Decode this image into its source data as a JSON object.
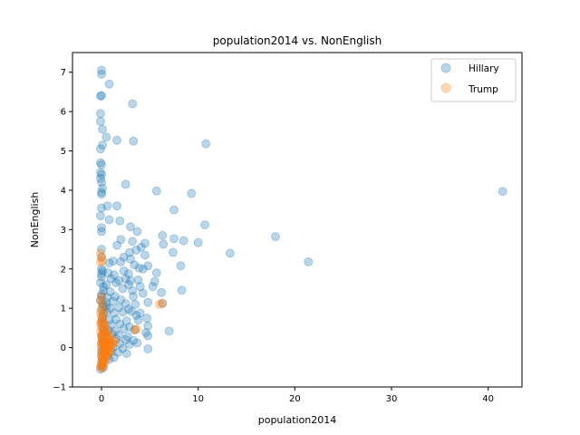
{
  "chart_data": {
    "type": "scatter",
    "title": "population2014 vs. NonEnglish",
    "xlabel": "population2014",
    "ylabel": "NonEnglish",
    "xlim": [
      -3,
      43.5
    ],
    "ylim": [
      -1,
      7.5
    ],
    "xticks": [
      0,
      10,
      20,
      30,
      40
    ],
    "yticks": [
      -1,
      0,
      1,
      2,
      3,
      4,
      5,
      6,
      7
    ],
    "grid": false,
    "legend_position": "top-right",
    "series": [
      {
        "name": "Hillary",
        "color": "#1f77b4",
        "alpha": 0.3,
        "points": [
          [
            0.0,
            7.05
          ],
          [
            0.0,
            6.95
          ],
          [
            0.8,
            6.7
          ],
          [
            -0.1,
            6.4
          ],
          [
            0.0,
            6.4
          ],
          [
            3.2,
            6.2
          ],
          [
            -0.1,
            5.95
          ],
          [
            -0.1,
            5.75
          ],
          [
            0.1,
            5.55
          ],
          [
            0.5,
            5.35
          ],
          [
            1.6,
            5.27
          ],
          [
            3.3,
            5.25
          ],
          [
            10.8,
            5.18
          ],
          [
            0.1,
            5.15
          ],
          [
            -0.1,
            5.05
          ],
          [
            -0.1,
            4.7
          ],
          [
            0.0,
            4.65
          ],
          [
            -0.1,
            4.45
          ],
          [
            0.0,
            4.4
          ],
          [
            -0.1,
            4.3
          ],
          [
            0.0,
            4.2
          ],
          [
            2.5,
            4.15
          ],
          [
            0.1,
            4.05
          ],
          [
            0.0,
            3.95
          ],
          [
            0.0,
            3.9
          ],
          [
            5.7,
            3.98
          ],
          [
            9.3,
            3.92
          ],
          [
            41.5,
            3.97
          ],
          [
            0.6,
            3.6
          ],
          [
            1.6,
            3.6
          ],
          [
            0.0,
            3.55
          ],
          [
            7.5,
            3.5
          ],
          [
            -0.1,
            3.35
          ],
          [
            0.8,
            3.25
          ],
          [
            1.9,
            3.22
          ],
          [
            10.7,
            3.12
          ],
          [
            0.0,
            3.05
          ],
          [
            0.0,
            2.95
          ],
          [
            3.0,
            3.07
          ],
          [
            3.7,
            2.95
          ],
          [
            6.3,
            2.85
          ],
          [
            7.5,
            2.77
          ],
          [
            8.5,
            2.72
          ],
          [
            10.0,
            2.67
          ],
          [
            18.0,
            2.82
          ],
          [
            0.0,
            2.5
          ],
          [
            2.0,
            2.75
          ],
          [
            3.2,
            2.7
          ],
          [
            4.5,
            2.65
          ],
          [
            6.4,
            2.63
          ],
          [
            1.6,
            2.6
          ],
          [
            2.9,
            2.42
          ],
          [
            3.6,
            2.48
          ],
          [
            4.1,
            2.55
          ],
          [
            7.4,
            2.42
          ],
          [
            13.3,
            2.4
          ],
          [
            0.0,
            2.3
          ],
          [
            2.3,
            2.3
          ],
          [
            3.0,
            2.25
          ],
          [
            4.5,
            2.35
          ],
          [
            1.2,
            2.2
          ],
          [
            2.0,
            2.18
          ],
          [
            21.4,
            2.18
          ],
          [
            0.0,
            2.0
          ],
          [
            0.8,
            2.15
          ],
          [
            3.4,
            2.1
          ],
          [
            3.9,
            2.02
          ],
          [
            4.8,
            2.08
          ],
          [
            4.3,
            2.0
          ],
          [
            0.1,
            1.95
          ],
          [
            0.0,
            1.88
          ],
          [
            0.7,
            1.9
          ],
          [
            1.3,
            1.85
          ],
          [
            2.3,
            1.95
          ],
          [
            2.8,
            1.88
          ],
          [
            5.7,
            1.9
          ],
          [
            8.2,
            2.08
          ],
          [
            0.0,
            1.8
          ],
          [
            1.0,
            1.75
          ],
          [
            1.8,
            1.7
          ],
          [
            2.5,
            1.75
          ],
          [
            3.0,
            1.7
          ],
          [
            3.8,
            1.72
          ],
          [
            5.5,
            1.68
          ],
          [
            -0.1,
            1.65
          ],
          [
            0.5,
            1.6
          ],
          [
            1.5,
            1.65
          ],
          [
            2.8,
            1.6
          ],
          [
            4.0,
            1.55
          ],
          [
            5.3,
            1.55
          ],
          [
            0.2,
            1.45
          ],
          [
            0.9,
            1.42
          ],
          [
            2.2,
            1.5
          ],
          [
            3.2,
            1.45
          ],
          [
            4.3,
            1.38
          ],
          [
            6.2,
            1.4
          ],
          [
            8.3,
            1.46
          ],
          [
            0.0,
            1.3
          ],
          [
            0.6,
            1.28
          ],
          [
            1.4,
            1.3
          ],
          [
            2.0,
            1.22
          ],
          [
            3.3,
            1.3
          ],
          [
            -0.1,
            1.2
          ],
          [
            0.5,
            1.15
          ],
          [
            1.2,
            1.18
          ],
          [
            2.5,
            1.12
          ],
          [
            3.5,
            1.1
          ],
          [
            4.8,
            1.15
          ],
          [
            6.3,
            1.12
          ],
          [
            0.2,
            1.05
          ],
          [
            0.9,
            1.0
          ],
          [
            1.8,
            1.02
          ],
          [
            2.8,
            0.98
          ],
          [
            3.1,
            0.92
          ],
          [
            4.0,
            0.88
          ],
          [
            0.0,
            0.95
          ],
          [
            0.5,
            0.9
          ],
          [
            1.3,
            0.88
          ],
          [
            2.2,
            0.9
          ],
          [
            3.6,
            0.82
          ],
          [
            4.7,
            0.75
          ],
          [
            0.1,
            0.75
          ],
          [
            0.8,
            0.7
          ],
          [
            1.5,
            0.72
          ],
          [
            2.6,
            0.68
          ],
          [
            3.8,
            0.7
          ],
          [
            0.2,
            0.62
          ],
          [
            1.0,
            0.58
          ],
          [
            1.9,
            0.6
          ],
          [
            2.9,
            0.52
          ],
          [
            4.8,
            0.55
          ],
          [
            0.1,
            0.5
          ],
          [
            0.7,
            0.45
          ],
          [
            1.4,
            0.42
          ],
          [
            2.3,
            0.48
          ],
          [
            3.4,
            0.45
          ],
          [
            4.6,
            0.38
          ],
          [
            7.0,
            0.42
          ],
          [
            0.3,
            0.38
          ],
          [
            1.1,
            0.35
          ],
          [
            1.8,
            0.32
          ],
          [
            2.7,
            0.28
          ],
          [
            4.8,
            0.3
          ],
          [
            0.0,
            0.3
          ],
          [
            0.6,
            0.25
          ],
          [
            1.5,
            0.22
          ],
          [
            2.5,
            0.2
          ],
          [
            3.3,
            0.18
          ],
          [
            0.2,
            0.15
          ],
          [
            0.9,
            0.12
          ],
          [
            1.9,
            0.1
          ],
          [
            2.9,
            0.08
          ],
          [
            3.7,
            0.12
          ],
          [
            0.0,
            0.05
          ],
          [
            0.5,
            0.02
          ],
          [
            1.2,
            0.0
          ],
          [
            2.2,
            -0.02
          ],
          [
            4.8,
            -0.03
          ],
          [
            0.3,
            -0.08
          ],
          [
            1.0,
            -0.1
          ],
          [
            1.7,
            -0.12
          ],
          [
            2.6,
            -0.15
          ],
          [
            0.0,
            -0.2
          ],
          [
            0.6,
            -0.22
          ],
          [
            1.3,
            -0.25
          ],
          [
            0.8,
            -0.3
          ],
          [
            0.1,
            -0.35
          ],
          [
            0.0,
            -0.45
          ],
          [
            -0.1,
            -0.55
          ],
          [
            0.2,
            -0.5
          ],
          [
            0.0,
            -0.1
          ],
          [
            0.4,
            0.1
          ],
          [
            0.1,
            0.2
          ],
          [
            0.3,
            0.45
          ],
          [
            0.0,
            0.65
          ],
          [
            0.2,
            0.85
          ],
          [
            0.5,
            1.05
          ],
          [
            0.1,
            1.12
          ],
          [
            0.0,
            1.35
          ],
          [
            0.2,
            1.55
          ]
        ]
      },
      {
        "name": "Trump",
        "color": "#ff7f0e",
        "alpha": 0.3,
        "points": [
          [
            -0.1,
            2.4
          ],
          [
            0.0,
            2.3
          ],
          [
            0.1,
            2.2
          ],
          [
            -0.1,
            2.18
          ],
          [
            0.0,
            1.3
          ],
          [
            -0.1,
            1.2
          ],
          [
            0.1,
            1.1
          ],
          [
            0.0,
            1.0
          ],
          [
            6.0,
            1.1
          ],
          [
            6.3,
            1.13
          ],
          [
            -0.1,
            0.88
          ],
          [
            0.0,
            0.8
          ],
          [
            0.1,
            0.75
          ],
          [
            0.0,
            0.68
          ],
          [
            -0.1,
            0.6
          ],
          [
            0.2,
            0.62
          ],
          [
            0.0,
            0.55
          ],
          [
            0.3,
            0.5
          ],
          [
            0.1,
            0.45
          ],
          [
            3.5,
            0.45
          ],
          [
            3.6,
            0.47
          ],
          [
            -0.1,
            0.4
          ],
          [
            0.2,
            0.38
          ],
          [
            0.4,
            0.35
          ],
          [
            0.0,
            0.3
          ],
          [
            0.5,
            0.28
          ],
          [
            0.8,
            0.25
          ],
          [
            0.1,
            0.22
          ],
          [
            0.3,
            0.2
          ],
          [
            0.6,
            0.18
          ],
          [
            0.0,
            0.15
          ],
          [
            0.9,
            0.15
          ],
          [
            0.2,
            0.1
          ],
          [
            0.4,
            0.08
          ],
          [
            0.7,
            0.05
          ],
          [
            1.0,
            0.05
          ],
          [
            0.0,
            0.02
          ],
          [
            0.3,
            0.0
          ],
          [
            0.5,
            -0.02
          ],
          [
            0.8,
            -0.05
          ],
          [
            0.1,
            -0.08
          ],
          [
            0.4,
            -0.1
          ],
          [
            0.0,
            -0.12
          ],
          [
            0.6,
            -0.15
          ],
          [
            0.2,
            -0.18
          ],
          [
            0.0,
            -0.22
          ],
          [
            0.3,
            -0.25
          ],
          [
            0.1,
            -0.3
          ],
          [
            0.0,
            -0.35
          ],
          [
            0.2,
            -0.38
          ],
          [
            0.0,
            -0.42
          ],
          [
            0.1,
            -0.45
          ],
          [
            -0.1,
            -0.48
          ],
          [
            0.0,
            -0.5
          ],
          [
            0.1,
            -0.52
          ],
          [
            0.3,
            -0.4
          ],
          [
            0.5,
            -0.3
          ],
          [
            0.7,
            -0.2
          ],
          [
            0.9,
            -0.1
          ],
          [
            1.2,
            0.1
          ],
          [
            0.2,
            0.3
          ],
          [
            0.4,
            0.5
          ],
          [
            0.6,
            0.4
          ],
          [
            0.3,
            0.6
          ],
          [
            0.1,
            0.7
          ],
          [
            0.2,
            0.9
          ],
          [
            0.0,
            0.12
          ],
          [
            0.15,
            -0.05
          ],
          [
            0.25,
            0.05
          ],
          [
            0.35,
            -0.15
          ],
          [
            0.05,
            0.25
          ],
          [
            0.45,
            0.15
          ],
          [
            0.55,
            0.0
          ],
          [
            0.65,
            0.1
          ],
          [
            0.75,
            -0.1
          ],
          [
            1.1,
            0.2
          ],
          [
            1.4,
            0.15
          ],
          [
            0.85,
            0.3
          ],
          [
            0.95,
            0.05
          ],
          [
            0.05,
            -0.28
          ]
        ]
      }
    ]
  }
}
